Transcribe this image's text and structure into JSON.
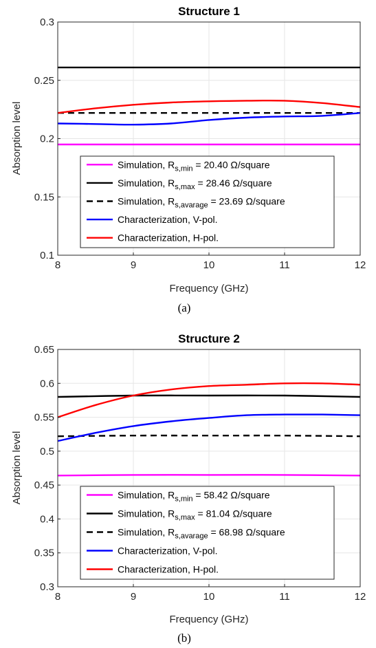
{
  "chart_data": [
    {
      "type": "line",
      "title": "Structure 1",
      "xlabel": "Frequency (GHz)",
      "ylabel": "Absorption level",
      "xlim": [
        8,
        12
      ],
      "ylim": [
        0.1,
        0.3
      ],
      "xticks": [
        8,
        9,
        10,
        11,
        12
      ],
      "yticks": [
        0.1,
        0.15,
        0.2,
        0.25,
        0.3
      ],
      "xtick_labels": [
        "8",
        "9",
        "10",
        "11",
        "12"
      ],
      "ytick_labels": [
        "0.1",
        "0.15",
        "0.2",
        "0.25",
        "0.3"
      ],
      "grid": true,
      "legend_position": "lower-center",
      "caption": "(a)",
      "series": [
        {
          "name": "Simulation, R_s,min = 20.40 Ω/square",
          "legend": {
            "pre": "Simulation, R",
            "sub": "s,min",
            "post": " = 20.40 Ω/square"
          },
          "color": "#ff00ff",
          "dash": "solid",
          "x": [
            8,
            9,
            10,
            11,
            12
          ],
          "y": [
            0.195,
            0.195,
            0.195,
            0.195,
            0.195
          ]
        },
        {
          "name": "Simulation, R_s,max = 28.46 Ω/square",
          "legend": {
            "pre": "Simulation, R",
            "sub": "s,max",
            "post": " = 28.46 Ω/square"
          },
          "color": "#000000",
          "dash": "solid",
          "x": [
            8,
            9,
            10,
            11,
            12
          ],
          "y": [
            0.261,
            0.261,
            0.261,
            0.261,
            0.261
          ]
        },
        {
          "name": "Simulation, R_s,avarage = 23.69 Ω/square",
          "legend": {
            "pre": "Simulation,  R",
            "sub": "s,avarage",
            "post": " = 23.69 Ω/square"
          },
          "color": "#000000",
          "dash": "dashed",
          "x": [
            8,
            9,
            10,
            11,
            12
          ],
          "y": [
            0.222,
            0.222,
            0.222,
            0.222,
            0.222
          ]
        },
        {
          "name": "Characterization, V-pol.",
          "legend": {
            "pre": "Characterization, V-pol.",
            "sub": "",
            "post": ""
          },
          "color": "#0000ff",
          "dash": "solid",
          "x": [
            8,
            8.5,
            9,
            9.5,
            10,
            10.5,
            11,
            11.5,
            12
          ],
          "y": [
            0.213,
            0.2125,
            0.212,
            0.213,
            0.216,
            0.218,
            0.219,
            0.2195,
            0.222
          ]
        },
        {
          "name": "Characterization, H-pol.",
          "legend": {
            "pre": "Characterization, H-pol.",
            "sub": "",
            "post": ""
          },
          "color": "#ff0000",
          "dash": "solid",
          "x": [
            8,
            8.5,
            9,
            9.5,
            10,
            10.5,
            11,
            11.5,
            12
          ],
          "y": [
            0.222,
            0.226,
            0.229,
            0.231,
            0.232,
            0.2325,
            0.2325,
            0.2305,
            0.227
          ]
        }
      ]
    },
    {
      "type": "line",
      "title": "Structure 2",
      "xlabel": "Frequency (GHz)",
      "ylabel": "Absorption level",
      "xlim": [
        8,
        12
      ],
      "ylim": [
        0.3,
        0.65
      ],
      "xticks": [
        8,
        9,
        10,
        11,
        12
      ],
      "yticks": [
        0.3,
        0.35,
        0.4,
        0.45,
        0.5,
        0.55,
        0.6,
        0.65
      ],
      "xtick_labels": [
        "8",
        "9",
        "10",
        "11",
        "12"
      ],
      "ytick_labels": [
        "0.3",
        "0.35",
        "0.4",
        "0.45",
        "0.5",
        "0.55",
        "0.6",
        "0.65"
      ],
      "grid": true,
      "legend_position": "lower-center",
      "caption": "(b)",
      "series": [
        {
          "name": "Simulation, R_s,min = 58.42 Ω/square",
          "legend": {
            "pre": "Simulation, R",
            "sub": "s,min",
            "post": " = 58.42 Ω/square"
          },
          "color": "#ff00ff",
          "dash": "solid",
          "x": [
            8,
            9,
            10,
            11,
            12
          ],
          "y": [
            0.464,
            0.465,
            0.465,
            0.465,
            0.464
          ]
        },
        {
          "name": "Simulation, R_s,max = 81.04 Ω/square",
          "legend": {
            "pre": "Simulation, R",
            "sub": "s,max",
            "post": " = 81.04 Ω/square"
          },
          "color": "#000000",
          "dash": "solid",
          "x": [
            8,
            9,
            10,
            11,
            12
          ],
          "y": [
            0.58,
            0.582,
            0.582,
            0.582,
            0.58
          ]
        },
        {
          "name": "Simulation, R_s,avarage = 68.98 Ω/square",
          "legend": {
            "pre": "Simulation,  R",
            "sub": "s,avarage",
            "post": " = 68.98 Ω/square"
          },
          "color": "#000000",
          "dash": "dashed",
          "x": [
            8,
            9,
            10,
            11,
            12
          ],
          "y": [
            0.522,
            0.523,
            0.523,
            0.523,
            0.522
          ]
        },
        {
          "name": "Characterization, V-pol.",
          "legend": {
            "pre": "Characterization, V-pol.",
            "sub": "",
            "post": ""
          },
          "color": "#0000ff",
          "dash": "solid",
          "x": [
            8,
            8.5,
            9,
            9.5,
            10,
            10.5,
            11,
            11.5,
            12
          ],
          "y": [
            0.515,
            0.527,
            0.537,
            0.544,
            0.549,
            0.553,
            0.554,
            0.554,
            0.553
          ]
        },
        {
          "name": "Characterization, H-pol.",
          "legend": {
            "pre": "Characterization, H-pol.",
            "sub": "",
            "post": ""
          },
          "color": "#ff0000",
          "dash": "solid",
          "x": [
            8,
            8.5,
            9,
            9.5,
            10,
            10.5,
            11,
            11.5,
            12
          ],
          "y": [
            0.55,
            0.568,
            0.582,
            0.591,
            0.596,
            0.598,
            0.6,
            0.6,
            0.598
          ]
        }
      ]
    }
  ]
}
